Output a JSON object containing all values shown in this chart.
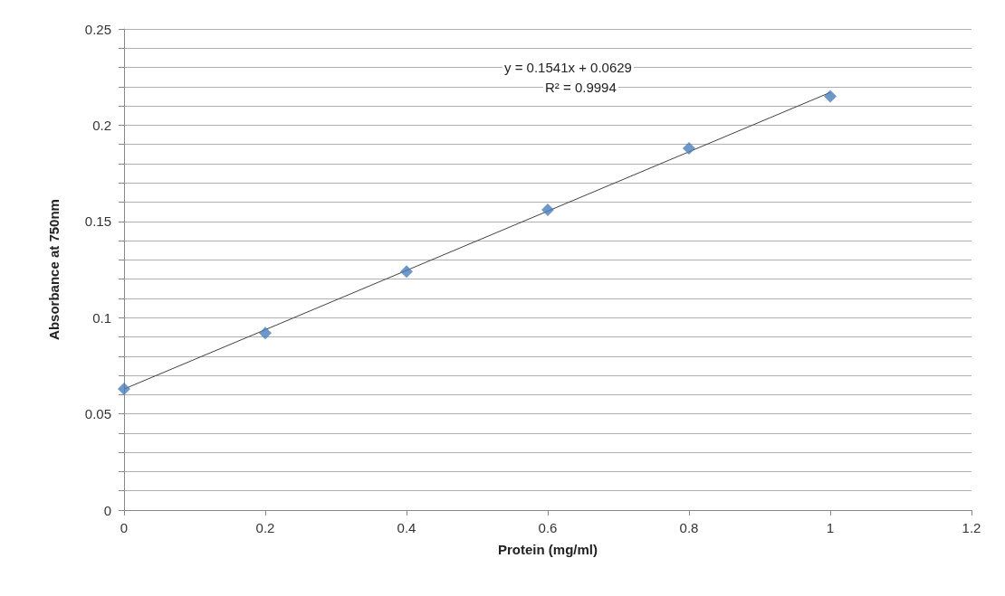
{
  "chart_data": {
    "type": "scatter",
    "xlabel": "Protein (mg/ml)",
    "ylabel": "Absorbance at 750nm",
    "xlim": [
      0,
      1.2
    ],
    "xticks": [
      0,
      0.2,
      0.4,
      0.6,
      0.8,
      1,
      1.2
    ],
    "ylim": [
      0,
      0.25
    ],
    "yticks": [
      0,
      {
        "value": 0.01,
        "label": null
      },
      {
        "value": 0.02,
        "label": null
      },
      {
        "value": 0.03,
        "label": null
      },
      {
        "value": 0.04,
        "label": null
      },
      0.05,
      {
        "value": 0.06,
        "label": null
      },
      {
        "value": 0.07,
        "label": null
      },
      {
        "value": 0.08,
        "label": null
      },
      {
        "value": 0.09,
        "label": null
      },
      0.1,
      {
        "value": 0.11,
        "label": null
      },
      {
        "value": 0.12,
        "label": null
      },
      {
        "value": 0.13,
        "label": null
      },
      {
        "value": 0.14,
        "label": null
      },
      0.15,
      {
        "value": 0.16,
        "label": null
      },
      {
        "value": 0.17,
        "label": null
      },
      {
        "value": 0.18,
        "label": null
      },
      {
        "value": 0.19,
        "label": null
      },
      0.2,
      {
        "value": 0.21,
        "label": null
      },
      {
        "value": 0.22,
        "label": null
      },
      {
        "value": 0.23,
        "label": null
      },
      {
        "value": 0.24,
        "label": null
      },
      0.25
    ],
    "grid": "y",
    "marker": "diamond",
    "series": [
      {
        "color": "#4a7ebb",
        "x": [
          0,
          0.2,
          0.4,
          0.6,
          0.8,
          1
        ],
        "values": [
          0.063,
          0.092,
          0.124,
          0.156,
          0.188,
          0.215
        ]
      },
      {
        "type": "line",
        "color": "#404040",
        "x": [
          0,
          1
        ],
        "values": [
          0.0629,
          0.217
        ],
        "marker": "none",
        "line_style": "solid"
      }
    ],
    "annotations": [
      "y = 0.1541x + 0.0629",
      "R² = 0.9994"
    ]
  }
}
